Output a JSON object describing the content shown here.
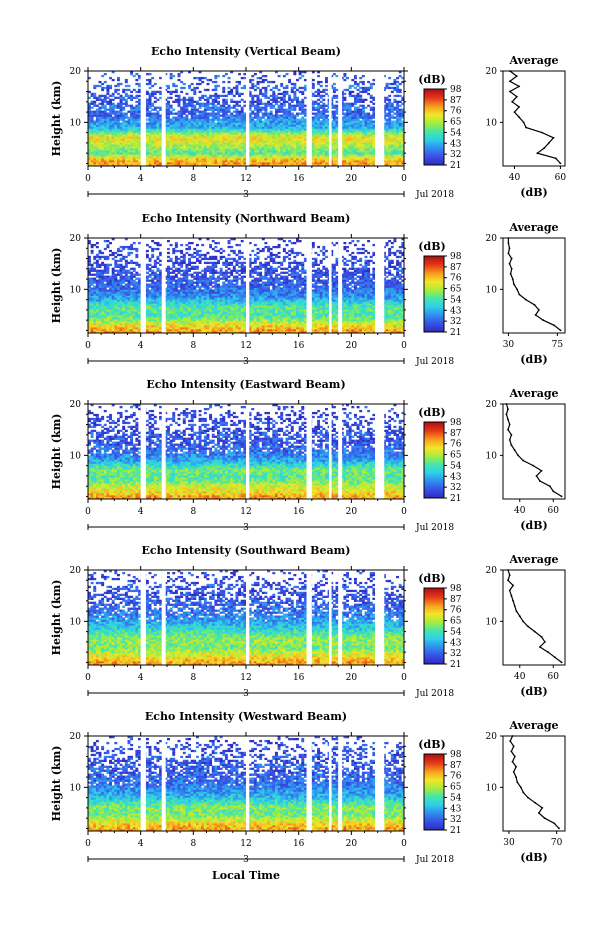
{
  "figure": {
    "xlabel": "Local Time"
  },
  "colorbar": {
    "label": "(dB)",
    "ticks": [
      "21",
      "32",
      "43",
      "54",
      "65",
      "76",
      "87",
      "98"
    ]
  },
  "colors": {
    "colormap": [
      "#2d2fbf",
      "#3a52e8",
      "#2f8ff0",
      "#2fd0e8",
      "#46e6a8",
      "#a6ec3c",
      "#f2e629",
      "#f7a21e",
      "#e83d1a",
      "#b41414"
    ],
    "gap": "#ffffff",
    "axes": "#000000"
  },
  "chart_data": [
    {
      "type": "heatmap",
      "title": "Echo Intensity (Vertical Beam)",
      "ylabel": "Height (km)",
      "x_ticks": [
        "0",
        "4",
        "8",
        "12",
        "16",
        "20",
        "0"
      ],
      "date_ticks": [
        "3"
      ],
      "date_label": "Jul 2018",
      "xlim": [
        0,
        24
      ],
      "ylim": [
        1.5,
        20
      ],
      "clim": [
        21,
        98
      ],
      "data_gaps_hours": [
        [
          4.0,
          4.4
        ],
        [
          5.6,
          5.9
        ],
        [
          12.0,
          12.25
        ],
        [
          16.6,
          17.0
        ],
        [
          18.3,
          18.5
        ],
        [
          19.0,
          19.3
        ],
        [
          21.8,
          22.5
        ]
      ],
      "profile": {
        "title": "Average",
        "xlabel": "(dB)",
        "x_ticks": [
          "40",
          "60"
        ],
        "xlim": [
          35,
          62
        ],
        "ylim": [
          1.5,
          20
        ],
        "height_km": [
          2,
          3,
          4,
          5,
          6,
          7,
          8,
          9,
          10,
          11,
          12,
          13,
          14,
          15,
          16,
          17,
          18,
          19,
          20
        ],
        "mean_db": [
          60,
          58,
          50,
          53,
          55,
          57,
          52,
          45,
          44,
          42,
          40,
          42,
          39,
          41,
          38,
          42,
          38,
          41,
          38
        ]
      }
    },
    {
      "type": "heatmap",
      "title": "Echo Intensity (Northward Beam)",
      "ylabel": "Height (km)",
      "x_ticks": [
        "0",
        "4",
        "8",
        "12",
        "16",
        "20",
        "0"
      ],
      "date_ticks": [
        "3"
      ],
      "date_label": "Jul 2018",
      "xlim": [
        0,
        24
      ],
      "ylim": [
        1.5,
        20
      ],
      "clim": [
        21,
        98
      ],
      "data_gaps_hours": [
        [
          4.0,
          4.4
        ],
        [
          5.6,
          5.9
        ],
        [
          12.0,
          12.25
        ],
        [
          16.6,
          17.0
        ],
        [
          18.3,
          18.5
        ],
        [
          19.0,
          19.3
        ],
        [
          21.8,
          22.5
        ]
      ],
      "profile": {
        "title": "Average",
        "xlabel": "(dB)",
        "x_ticks": [
          "30",
          "75"
        ],
        "xlim": [
          25,
          82
        ],
        "ylim": [
          1.5,
          20
        ],
        "height_km": [
          2,
          3,
          4,
          5,
          6,
          7,
          8,
          9,
          10,
          11,
          12,
          13,
          14,
          15,
          16,
          17,
          18,
          19,
          20
        ],
        "mean_db": [
          78,
          72,
          62,
          55,
          58,
          54,
          46,
          40,
          38,
          35,
          34,
          32,
          33,
          31,
          33,
          30,
          31,
          30,
          30
        ]
      }
    },
    {
      "type": "heatmap",
      "title": "Echo Intensity (Eastward Beam)",
      "ylabel": "Height (km)",
      "x_ticks": [
        "0",
        "4",
        "8",
        "12",
        "16",
        "20",
        "0"
      ],
      "date_ticks": [
        "3"
      ],
      "date_label": "Jul 2018",
      "xlim": [
        0,
        24
      ],
      "ylim": [
        1.5,
        20
      ],
      "clim": [
        21,
        98
      ],
      "data_gaps_hours": [
        [
          4.0,
          4.4
        ],
        [
          5.6,
          5.9
        ],
        [
          12.0,
          12.25
        ],
        [
          16.6,
          17.0
        ],
        [
          18.3,
          18.5
        ],
        [
          19.0,
          19.3
        ],
        [
          21.8,
          22.5
        ]
      ],
      "profile": {
        "title": "Average",
        "xlabel": "(dB)",
        "x_ticks": [
          "40",
          "60"
        ],
        "xlim": [
          30,
          67
        ],
        "ylim": [
          1.5,
          20
        ],
        "height_km": [
          2,
          3,
          4,
          5,
          6,
          7,
          8,
          9,
          10,
          11,
          12,
          13,
          14,
          15,
          16,
          17,
          18,
          19,
          20
        ],
        "mean_db": [
          65,
          60,
          58,
          52,
          50,
          53,
          48,
          42,
          39,
          37,
          35,
          34,
          35,
          33,
          34,
          33,
          32,
          33,
          32
        ]
      }
    },
    {
      "type": "heatmap",
      "title": "Echo Intensity (Southward Beam)",
      "ylabel": "Height (km)",
      "x_ticks": [
        "0",
        "4",
        "8",
        "12",
        "16",
        "20",
        "0"
      ],
      "date_ticks": [
        "3"
      ],
      "date_label": "Jul 2018",
      "xlim": [
        0,
        24
      ],
      "ylim": [
        1.5,
        20
      ],
      "clim": [
        21,
        98
      ],
      "data_gaps_hours": [
        [
          4.0,
          4.4
        ],
        [
          5.6,
          5.9
        ],
        [
          12.0,
          12.25
        ],
        [
          16.6,
          17.0
        ],
        [
          18.3,
          18.5
        ],
        [
          19.0,
          19.3
        ],
        [
          21.8,
          22.5
        ]
      ],
      "profile": {
        "title": "Average",
        "xlabel": "(dB)",
        "x_ticks": [
          "40",
          "60"
        ],
        "xlim": [
          30,
          67
        ],
        "ylim": [
          1.5,
          20
        ],
        "height_km": [
          2,
          3,
          4,
          5,
          6,
          7,
          8,
          9,
          10,
          11,
          12,
          13,
          14,
          15,
          16,
          17,
          18,
          19,
          20
        ],
        "mean_db": [
          65,
          61,
          57,
          52,
          55,
          53,
          49,
          45,
          42,
          40,
          38,
          37,
          36,
          35,
          34,
          36,
          33,
          34,
          33
        ]
      }
    },
    {
      "type": "heatmap",
      "title": "Echo Intensity (Westward Beam)",
      "ylabel": "Height (km)",
      "x_ticks": [
        "0",
        "4",
        "8",
        "12",
        "16",
        "20",
        "0"
      ],
      "date_ticks": [
        "3"
      ],
      "date_label": "Jul 2018",
      "xlim": [
        0,
        24
      ],
      "ylim": [
        1.5,
        20
      ],
      "clim": [
        21,
        98
      ],
      "data_gaps_hours": [
        [
          4.0,
          4.4
        ],
        [
          5.6,
          5.9
        ],
        [
          12.0,
          12.25
        ],
        [
          16.6,
          17.0
        ],
        [
          18.3,
          18.5
        ],
        [
          19.0,
          19.3
        ],
        [
          21.8,
          22.5
        ]
      ],
      "profile": {
        "title": "Average",
        "xlabel": "(dB)",
        "x_ticks": [
          "30",
          "70"
        ],
        "xlim": [
          25,
          77
        ],
        "ylim": [
          1.5,
          20
        ],
        "height_km": [
          2,
          3,
          4,
          5,
          6,
          7,
          8,
          9,
          10,
          11,
          12,
          13,
          14,
          15,
          16,
          17,
          18,
          19,
          20
        ],
        "mean_db": [
          72,
          68,
          60,
          55,
          58,
          52,
          46,
          42,
          40,
          37,
          36,
          34,
          36,
          33,
          35,
          32,
          34,
          31,
          33
        ]
      }
    }
  ]
}
